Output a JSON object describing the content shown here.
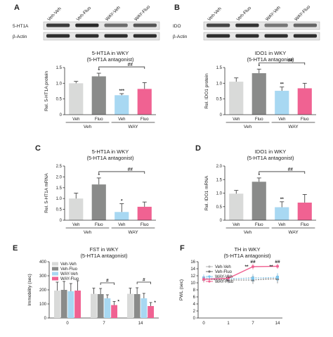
{
  "colors": {
    "veh_veh": "#d9dad9",
    "veh_fluo": "#8a8b8a",
    "way_veh": "#a8d8f2",
    "way_fluo": "#f06292"
  },
  "blots": [
    {
      "letter": "A",
      "lanes": [
        "Veh-Veh",
        "Veh-Fluo",
        "WAY-Veh",
        "WAY-Fluo"
      ],
      "rows": [
        "5-HT1A",
        "β-Actin"
      ]
    },
    {
      "letter": "B",
      "lanes": [
        "Veh-Veh",
        "Veh-Fluo",
        "WAY-Veh",
        "WAY-Fluo"
      ],
      "rows": [
        "IDO",
        "β-Actin"
      ]
    }
  ],
  "chart_data": [
    {
      "type": "bar",
      "letter": "",
      "title": [
        "5-HT1A in WKY",
        "(5-HT1A antagonist)"
      ],
      "ylabel": "Rel. 5-HT1A protein",
      "ylim": [
        0,
        1.5
      ],
      "yticks": [
        0,
        0.5,
        1.0,
        1.5
      ],
      "yticklabels": [
        "0",
        "0.5",
        "1.0",
        "1.5"
      ],
      "categories": [
        "Veh",
        "Fluo",
        "Veh",
        "Fluo"
      ],
      "groups": [
        {
          "label": "Veh",
          "span": [
            0,
            1
          ]
        },
        {
          "label": "WAY",
          "span": [
            2,
            3
          ]
        }
      ],
      "values": [
        1.0,
        1.22,
        0.62,
        0.82
      ],
      "errors": [
        0.06,
        0.1,
        0.05,
        0.2
      ],
      "stars": [
        "",
        "*",
        "***",
        ""
      ],
      "bracket": {
        "label": "##",
        "from": 1,
        "to": 3
      }
    },
    {
      "type": "bar",
      "letter": "",
      "title": [
        "IDO1 in WKY",
        "(5-HT1A antagonist)"
      ],
      "ylabel": "Rel. IDO1 protein",
      "ylim": [
        0,
        1.5
      ],
      "yticks": [
        0,
        0.5,
        1.0,
        1.5
      ],
      "yticklabels": [
        "0",
        "0.5",
        "1.0",
        "1.5"
      ],
      "categories": [
        "Veh",
        "Fluo",
        "Veh",
        "Fluo"
      ],
      "groups": [
        {
          "label": "Veh",
          "span": [
            0,
            1
          ]
        },
        {
          "label": "WAY",
          "span": [
            2,
            3
          ]
        }
      ],
      "values": [
        1.05,
        1.32,
        0.76,
        0.84
      ],
      "errors": [
        0.12,
        0.13,
        0.12,
        0.16
      ],
      "stars": [
        "",
        "*",
        "**",
        ""
      ],
      "bracket": {
        "label": "##",
        "from": 1,
        "to": 3
      }
    },
    {
      "type": "bar",
      "letter": "C",
      "title": [
        "5-HT1A in WKY",
        "(5-HT1A antagonist)"
      ],
      "ylabel": "Rel. 5-HT1A mRNA",
      "ylim": [
        0,
        2.5
      ],
      "yticks": [
        0,
        0.5,
        1.0,
        1.5,
        2.0,
        2.5
      ],
      "yticklabels": [
        "0",
        "0.5",
        "1.0",
        "1.5",
        "2.0",
        "2.5"
      ],
      "categories": [
        "Veh",
        "Fluo",
        "Veh",
        "Fluo"
      ],
      "groups": [
        {
          "label": "Veh",
          "span": [
            0,
            1
          ]
        },
        {
          "label": "WAY",
          "span": [
            2,
            3
          ]
        }
      ],
      "values": [
        1.0,
        1.65,
        0.38,
        0.62
      ],
      "errors": [
        0.25,
        0.3,
        0.38,
        0.22
      ],
      "stars": [
        "",
        "*",
        "*",
        ""
      ],
      "bracket": {
        "label": "##",
        "from": 1,
        "to": 3
      }
    },
    {
      "type": "bar",
      "letter": "D",
      "title": [
        "IDO1 in WKY",
        "(5-HT1A antagonist)"
      ],
      "ylabel": "Rel. IDO1 mRNA",
      "ylim": [
        0,
        2.0
      ],
      "yticks": [
        0,
        0.5,
        1.0,
        1.5,
        2.0
      ],
      "yticklabels": [
        "0",
        "0.5",
        "1.0",
        "1.5",
        "2.0"
      ],
      "categories": [
        "Veh",
        "Fluo",
        "Veh",
        "Fluo"
      ],
      "groups": [
        {
          "label": "Veh",
          "span": [
            0,
            1
          ]
        },
        {
          "label": "WAY",
          "span": [
            2,
            3
          ]
        }
      ],
      "values": [
        0.98,
        1.42,
        0.48,
        0.65
      ],
      "errors": [
        0.12,
        0.14,
        0.2,
        0.3
      ],
      "stars": [
        "",
        "*",
        "**",
        ""
      ],
      "bracket": {
        "label": "##",
        "from": 1,
        "to": 3
      }
    },
    {
      "type": "bar",
      "letter": "E",
      "title": [
        "FST in WKY",
        "(5-HT1A antagonist)"
      ],
      "ylabel": "Immobility (sec)",
      "ylim": [
        0,
        400
      ],
      "yticks": [
        0,
        100,
        200,
        300,
        400
      ],
      "yticklabels": [
        "0",
        "100",
        "200",
        "300",
        "400"
      ],
      "categories": [
        "0",
        "7",
        "14"
      ],
      "legend": [
        "Veh-Veh",
        "Veh-Fluo",
        "WAY-Veh",
        "WAY-Fluo"
      ],
      "series": [
        {
          "name": "Veh-Veh",
          "values": [
            195,
            172,
            172
          ],
          "errors": [
            60,
            40,
            40
          ]
        },
        {
          "name": "Veh-Fluo",
          "values": [
            200,
            170,
            170
          ],
          "errors": [
            60,
            40,
            45
          ]
        },
        {
          "name": "WAY-Veh",
          "values": [
            190,
            140,
            140
          ],
          "errors": [
            55,
            25,
            35
          ]
        },
        {
          "name": "WAY-Fluo",
          "values": [
            195,
            92,
            85
          ],
          "errors": [
            70,
            25,
            25
          ]
        }
      ],
      "stars": [
        [
          "",
          "",
          "",
          ""
        ],
        [
          "",
          "",
          "",
          "*"
        ],
        [
          "",
          "",
          "",
          "*"
        ]
      ],
      "brackets": [
        {
          "label": "#",
          "cat": 1
        },
        {
          "label": "#",
          "cat": 2
        }
      ]
    },
    {
      "type": "line",
      "letter": "F",
      "title": [
        "TH in WKY",
        "(5-HT1A antagonist)"
      ],
      "ylabel": "PWL (sec)",
      "ylim": [
        0,
        16
      ],
      "yticks": [
        0,
        2,
        4,
        6,
        8,
        10,
        12,
        14,
        16
      ],
      "yticklabels": [
        "0",
        "2",
        "4",
        "6",
        "8",
        "10",
        "12",
        "14",
        "16"
      ],
      "x": [
        "0",
        "1",
        "7",
        "14"
      ],
      "legend": [
        "Veh-Veh",
        "Veh-Fluo",
        "WAY-Veh",
        "WAY-Fluo"
      ],
      "series": [
        {
          "name": "Veh-Veh",
          "values": [
            11.2,
            11.0,
            11.5,
            11.0
          ],
          "errors": [
            0.8,
            1.0,
            1.0,
            1.3
          ]
        },
        {
          "name": "Veh-Fluo",
          "values": [
            11.0,
            10.8,
            10.8,
            11.2
          ],
          "errors": [
            0.9,
            0.9,
            1.1,
            1.2
          ]
        },
        {
          "name": "WAY-Veh",
          "values": [
            11.4,
            11.2,
            11.3,
            11.6
          ],
          "errors": [
            1.0,
            1.2,
            1.0,
            1.2
          ]
        },
        {
          "name": "WAY-Fluo",
          "values": [
            11.0,
            11.3,
            14.6,
            14.7
          ],
          "errors": [
            0.8,
            1.0,
            0.8,
            0.7
          ]
        }
      ],
      "annotations": [
        {
          "x": 2,
          "top": "##",
          "side": "**"
        },
        {
          "x": 3,
          "top": "##",
          "side": "**"
        }
      ]
    }
  ]
}
